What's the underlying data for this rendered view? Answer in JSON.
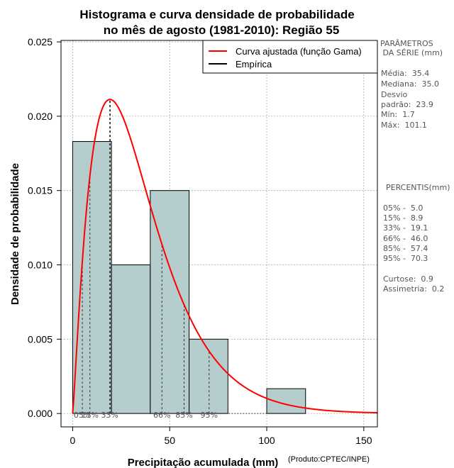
{
  "chart_data": {
    "type": "bar",
    "title_line1": "Histograma e curva densidade de probabilidade",
    "title_line2": "no mês de agosto (1981-2010): Região 55",
    "xlabel": "Precipitação acumulada (mm)",
    "ylabel": "Densidade de probabilidade",
    "credit": "(Produto:CPTEC/INPE)",
    "xlim": [
      -6,
      157
    ],
    "ylim": [
      -0.0009,
      0.0251
    ],
    "xticks": [
      0,
      50,
      100,
      150
    ],
    "yticks": [
      0.0,
      0.005,
      0.01,
      0.015,
      0.02,
      0.025
    ],
    "ytick_labels": [
      "0.000",
      "0.005",
      "0.010",
      "0.015",
      "0.020",
      "0.025"
    ],
    "grid": true,
    "bins": [
      {
        "x0": 0,
        "x1": 20,
        "density": 0.0183
      },
      {
        "x0": 20,
        "x1": 40,
        "density": 0.01
      },
      {
        "x0": 40,
        "x1": 60,
        "density": 0.015
      },
      {
        "x0": 60,
        "x1": 80,
        "density": 0.005
      },
      {
        "x0": 80,
        "x1": 100,
        "density": 0.0
      },
      {
        "x0": 100,
        "x1": 120,
        "density": 0.00167
      }
    ],
    "gamma_fit": {
      "shape": 2.19,
      "scale": 16.16
    },
    "mode_line": {
      "x": 19.4,
      "y": 0.0211
    },
    "percentile_markers": [
      {
        "x": 5.0,
        "label": "05%"
      },
      {
        "x": 8.9,
        "label": "15%"
      },
      {
        "x": 19.1,
        "label": "33%"
      },
      {
        "x": 46.0,
        "label": "66%"
      },
      {
        "x": 57.4,
        "label": "85%"
      },
      {
        "x": 70.3,
        "label": "95%"
      }
    ],
    "legend": {
      "position": "top-right",
      "items": [
        {
          "label": "Curva ajustada (função Gama)",
          "color": "#ff0000"
        },
        {
          "label": "Empírica",
          "color": "#000000"
        }
      ]
    },
    "colors": {
      "bar_fill": "#b5cecd",
      "curve": "#ff0000",
      "grid": "#aaaaaa"
    }
  },
  "stats": {
    "params_title_1": "PARÂMETROS",
    "params_title_2": " DA SÉRIE (mm)",
    "media": "Média:  35.4",
    "mediana": "Mediana:  35.0",
    "desvio_1": "Desvio",
    "desvio_2": "padrão:  23.9",
    "min": "Mín:  1.7",
    "max": "Máx:  101.1",
    "percentis_title": "PERCENTIS(mm)",
    "p05": "05% -  5.0",
    "p15": "15% -  8.9",
    "p33": "33% -  19.1",
    "p66": "66% -  46.0",
    "p85": "85% -  57.4",
    "p95": "95% -  70.3",
    "curtose": "Curtose:  0.9",
    "assimetria": "Assimetria:  0.2"
  }
}
